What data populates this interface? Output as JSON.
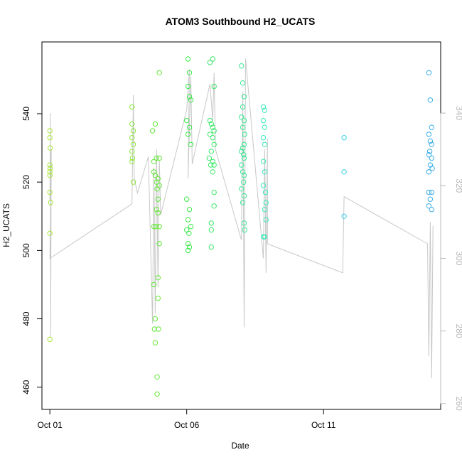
{
  "chart_data": {
    "type": "scatter",
    "title": "ATOM3 Southbound H2_UCATS",
    "xlabel": "Date",
    "ylabel": "H2_UCATS",
    "x_ticks": [
      {
        "label": "Oct 01",
        "day": 1
      },
      {
        "label": "Oct 06",
        "day": 6
      },
      {
        "label": "Oct 11",
        "day": 11
      }
    ],
    "xlim": [
      0.71,
      15.28
    ],
    "ylim": [
      453.5,
      561
    ],
    "y_ticks": [
      460,
      480,
      500,
      520,
      540
    ],
    "y2lim": [
      258.4,
      359.6
    ],
    "y2_ticks": [
      260,
      280,
      300,
      320,
      340
    ],
    "line_color": "#c8c8c8",
    "points": [
      {
        "day": 1.0,
        "y": 535,
        "color": "#a9e83a"
      },
      {
        "day": 1.0,
        "y": 533,
        "color": "#a9e83a"
      },
      {
        "day": 1.01,
        "y": 530,
        "color": "#a9e83a"
      },
      {
        "day": 1.0,
        "y": 525,
        "color": "#a9e83a"
      },
      {
        "day": 1.01,
        "y": 524,
        "color": "#a9e83a"
      },
      {
        "day": 1.0,
        "y": 523,
        "color": "#a9e83a"
      },
      {
        "day": 1.0,
        "y": 522,
        "color": "#a9e83a"
      },
      {
        "day": 1.0,
        "y": 517,
        "color": "#a9e83a"
      },
      {
        "day": 1.03,
        "y": 514,
        "color": "#a9e83a"
      },
      {
        "day": 1.0,
        "y": 505,
        "color": "#a9e83a"
      },
      {
        "day": 1.0,
        "y": 474,
        "color": "#a9e83a"
      },
      {
        "day": 4.0,
        "y": 542,
        "color": "#8ee83a"
      },
      {
        "day": 4.0,
        "y": 537,
        "color": "#8ee83a"
      },
      {
        "day": 4.05,
        "y": 535,
        "color": "#8ee83a"
      },
      {
        "day": 4.0,
        "y": 533,
        "color": "#8ee83a"
      },
      {
        "day": 4.05,
        "y": 531,
        "color": "#8ee83a"
      },
      {
        "day": 4.0,
        "y": 529,
        "color": "#8ee83a"
      },
      {
        "day": 4.02,
        "y": 527,
        "color": "#8ee83a"
      },
      {
        "day": 4.0,
        "y": 526,
        "color": "#8ee83a"
      },
      {
        "day": 4.05,
        "y": 520,
        "color": "#8ee83a"
      },
      {
        "day": 4.75,
        "y": 535,
        "color": "#66e83a"
      },
      {
        "day": 4.85,
        "y": 537,
        "color": "#66e83a"
      },
      {
        "day": 5.0,
        "y": 552,
        "color": "#66e83a"
      },
      {
        "day": 4.8,
        "y": 526,
        "color": "#66e83a"
      },
      {
        "day": 4.9,
        "y": 527,
        "color": "#66e83a"
      },
      {
        "day": 5.0,
        "y": 527,
        "color": "#66e83a"
      },
      {
        "day": 4.8,
        "y": 523,
        "color": "#66e83a"
      },
      {
        "day": 4.85,
        "y": 522,
        "color": "#66e83a"
      },
      {
        "day": 4.95,
        "y": 521,
        "color": "#66e83a"
      },
      {
        "day": 4.9,
        "y": 520,
        "color": "#66e83a"
      },
      {
        "day": 5.0,
        "y": 519,
        "color": "#66e83a"
      },
      {
        "day": 4.92,
        "y": 518,
        "color": "#66e83a"
      },
      {
        "day": 4.95,
        "y": 515,
        "color": "#66e83a"
      },
      {
        "day": 4.9,
        "y": 512,
        "color": "#66e83a"
      },
      {
        "day": 4.95,
        "y": 511,
        "color": "#66e83a"
      },
      {
        "day": 4.8,
        "y": 507,
        "color": "#66e83a"
      },
      {
        "day": 4.88,
        "y": 507,
        "color": "#66e83a"
      },
      {
        "day": 5.0,
        "y": 507,
        "color": "#66e83a"
      },
      {
        "day": 5.0,
        "y": 502,
        "color": "#66e83a"
      },
      {
        "day": 4.95,
        "y": 492,
        "color": "#66e83a"
      },
      {
        "day": 4.8,
        "y": 490,
        "color": "#66e83a"
      },
      {
        "day": 4.95,
        "y": 486,
        "color": "#66e83a"
      },
      {
        "day": 4.85,
        "y": 480,
        "color": "#66e83a"
      },
      {
        "day": 4.82,
        "y": 477,
        "color": "#66e83a"
      },
      {
        "day": 4.97,
        "y": 477,
        "color": "#66e83a"
      },
      {
        "day": 4.85,
        "y": 473,
        "color": "#66e83a"
      },
      {
        "day": 4.92,
        "y": 463,
        "color": "#66e83a"
      },
      {
        "day": 4.92,
        "y": 458,
        "color": "#66e83a"
      },
      {
        "day": 6.05,
        "y": 556,
        "color": "#3ae84a"
      },
      {
        "day": 6.1,
        "y": 552,
        "color": "#3ae84a"
      },
      {
        "day": 6.05,
        "y": 548,
        "color": "#3ae84a"
      },
      {
        "day": 6.1,
        "y": 545,
        "color": "#3ae84a"
      },
      {
        "day": 6.15,
        "y": 544,
        "color": "#3ae84a"
      },
      {
        "day": 6.0,
        "y": 538,
        "color": "#3ae84a"
      },
      {
        "day": 6.1,
        "y": 536,
        "color": "#3ae84a"
      },
      {
        "day": 6.05,
        "y": 534,
        "color": "#3ae84a"
      },
      {
        "day": 6.15,
        "y": 531,
        "color": "#3ae84a"
      },
      {
        "day": 6.0,
        "y": 515,
        "color": "#3ae84a"
      },
      {
        "day": 6.1,
        "y": 512,
        "color": "#3ae84a"
      },
      {
        "day": 6.05,
        "y": 509,
        "color": "#3ae84a"
      },
      {
        "day": 6.15,
        "y": 507,
        "color": "#3ae84a"
      },
      {
        "day": 6.0,
        "y": 506,
        "color": "#3ae84a"
      },
      {
        "day": 6.08,
        "y": 505,
        "color": "#3ae84a"
      },
      {
        "day": 6.05,
        "y": 502,
        "color": "#3ae84a"
      },
      {
        "day": 6.1,
        "y": 501,
        "color": "#3ae84a"
      },
      {
        "day": 6.05,
        "y": 500,
        "color": "#3ae84a"
      },
      {
        "day": 6.85,
        "y": 555,
        "color": "#3ae86a"
      },
      {
        "day": 6.95,
        "y": 556,
        "color": "#3ae86a"
      },
      {
        "day": 7.0,
        "y": 548,
        "color": "#3ae86a"
      },
      {
        "day": 6.85,
        "y": 538,
        "color": "#3ae86a"
      },
      {
        "day": 6.9,
        "y": 537,
        "color": "#3ae86a"
      },
      {
        "day": 6.95,
        "y": 536,
        "color": "#3ae86a"
      },
      {
        "day": 7.0,
        "y": 535,
        "color": "#3ae86a"
      },
      {
        "day": 6.85,
        "y": 534,
        "color": "#3ae86a"
      },
      {
        "day": 6.95,
        "y": 533,
        "color": "#3ae86a"
      },
      {
        "day": 7.0,
        "y": 531,
        "color": "#3ae86a"
      },
      {
        "day": 6.9,
        "y": 529,
        "color": "#3ae86a"
      },
      {
        "day": 6.82,
        "y": 527,
        "color": "#3ae86a"
      },
      {
        "day": 6.95,
        "y": 526,
        "color": "#3ae86a"
      },
      {
        "day": 6.88,
        "y": 525,
        "color": "#3ae86a"
      },
      {
        "day": 7.0,
        "y": 525,
        "color": "#3ae86a"
      },
      {
        "day": 6.95,
        "y": 523,
        "color": "#3ae86a"
      },
      {
        "day": 7.0,
        "y": 517,
        "color": "#3ae86a"
      },
      {
        "day": 7.0,
        "y": 513,
        "color": "#3ae86a"
      },
      {
        "day": 6.9,
        "y": 508,
        "color": "#3ae86a"
      },
      {
        "day": 6.9,
        "y": 506,
        "color": "#3ae86a"
      },
      {
        "day": 6.9,
        "y": 501,
        "color": "#3ae86a"
      },
      {
        "day": 8.0,
        "y": 554,
        "color": "#3ae894"
      },
      {
        "day": 8.05,
        "y": 549,
        "color": "#3ae894"
      },
      {
        "day": 8.1,
        "y": 545,
        "color": "#3ae894"
      },
      {
        "day": 8.05,
        "y": 542,
        "color": "#3ae894"
      },
      {
        "day": 8.0,
        "y": 539,
        "color": "#3ae894"
      },
      {
        "day": 8.1,
        "y": 538,
        "color": "#3ae894"
      },
      {
        "day": 8.05,
        "y": 536,
        "color": "#3ae894"
      },
      {
        "day": 8.12,
        "y": 534,
        "color": "#3ae894"
      },
      {
        "day": 8.1,
        "y": 531,
        "color": "#3ae894"
      },
      {
        "day": 8.05,
        "y": 530,
        "color": "#3ae894"
      },
      {
        "day": 8.0,
        "y": 529,
        "color": "#3ae894"
      },
      {
        "day": 8.08,
        "y": 528,
        "color": "#3ae894"
      },
      {
        "day": 8.1,
        "y": 527,
        "color": "#3ae894"
      },
      {
        "day": 8.0,
        "y": 525,
        "color": "#3ae894"
      },
      {
        "day": 8.05,
        "y": 523,
        "color": "#3ae894"
      },
      {
        "day": 8.1,
        "y": 522,
        "color": "#3ae894"
      },
      {
        "day": 8.08,
        "y": 520,
        "color": "#3ae894"
      },
      {
        "day": 8.0,
        "y": 518,
        "color": "#3ae894"
      },
      {
        "day": 8.1,
        "y": 516,
        "color": "#3ae894"
      },
      {
        "day": 8.05,
        "y": 514,
        "color": "#3ae894"
      },
      {
        "day": 8.1,
        "y": 508,
        "color": "#3ae894"
      },
      {
        "day": 8.12,
        "y": 506,
        "color": "#3ae894"
      },
      {
        "day": 8.8,
        "y": 542,
        "color": "#3ae8bc"
      },
      {
        "day": 8.85,
        "y": 541,
        "color": "#3ae8bc"
      },
      {
        "day": 8.8,
        "y": 538,
        "color": "#3ae8bc"
      },
      {
        "day": 8.85,
        "y": 536,
        "color": "#3ae8bc"
      },
      {
        "day": 8.8,
        "y": 533,
        "color": "#3ae8bc"
      },
      {
        "day": 8.85,
        "y": 531,
        "color": "#3ae8bc"
      },
      {
        "day": 8.8,
        "y": 526,
        "color": "#3ae8bc"
      },
      {
        "day": 8.85,
        "y": 523,
        "color": "#3ae8bc"
      },
      {
        "day": 8.8,
        "y": 519,
        "color": "#3ae8bc"
      },
      {
        "day": 8.88,
        "y": 517,
        "color": "#3ae8bc"
      },
      {
        "day": 8.9,
        "y": 514,
        "color": "#3ae8bc"
      },
      {
        "day": 8.85,
        "y": 512,
        "color": "#3ae8bc"
      },
      {
        "day": 8.9,
        "y": 509,
        "color": "#3ae8bc"
      },
      {
        "day": 8.8,
        "y": 504,
        "color": "#3ae8bc"
      },
      {
        "day": 8.85,
        "y": 504,
        "color": "#3ae8bc"
      },
      {
        "day": 11.75,
        "y": 533,
        "color": "#3ad2e8"
      },
      {
        "day": 11.75,
        "y": 523,
        "color": "#3ad2e8"
      },
      {
        "day": 11.75,
        "y": 510,
        "color": "#3ad2e8"
      },
      {
        "day": 14.85,
        "y": 552,
        "color": "#3aaee8"
      },
      {
        "day": 14.9,
        "y": 544,
        "color": "#3aaee8"
      },
      {
        "day": 14.95,
        "y": 536,
        "color": "#3aaee8"
      },
      {
        "day": 14.85,
        "y": 534,
        "color": "#3aaee8"
      },
      {
        "day": 14.9,
        "y": 532,
        "color": "#3aaee8"
      },
      {
        "day": 14.95,
        "y": 531,
        "color": "#3aaee8"
      },
      {
        "day": 14.88,
        "y": 529,
        "color": "#3aaee8"
      },
      {
        "day": 14.95,
        "y": 527,
        "color": "#3aaee8"
      },
      {
        "day": 14.85,
        "y": 528,
        "color": "#3aaee8"
      },
      {
        "day": 14.9,
        "y": 525,
        "color": "#3aaee8"
      },
      {
        "day": 14.97,
        "y": 524,
        "color": "#3aaee8"
      },
      {
        "day": 14.85,
        "y": 523,
        "color": "#3aaee8"
      },
      {
        "day": 14.95,
        "y": 517,
        "color": "#3aaee8"
      },
      {
        "day": 14.85,
        "y": 517,
        "color": "#3aaee8"
      },
      {
        "day": 14.9,
        "y": 515,
        "color": "#3aaee8"
      },
      {
        "day": 14.85,
        "y": 513,
        "color": "#3aaee8"
      },
      {
        "day": 14.95,
        "y": 512,
        "color": "#3aaee8"
      }
    ],
    "line_y2": [
      [
        1.0,
        316
      ],
      [
        1.02,
        340
      ],
      [
        1.03,
        278
      ],
      [
        1.05,
        330
      ],
      [
        1.0,
        300
      ],
      [
        4.0,
        315
      ],
      [
        4.05,
        345
      ],
      [
        4.08,
        322
      ],
      [
        4.2,
        318
      ],
      [
        4.6,
        328
      ],
      [
        4.75,
        282
      ],
      [
        4.8,
        325
      ],
      [
        4.85,
        285
      ],
      [
        4.9,
        330
      ],
      [
        4.95,
        292
      ],
      [
        5.0,
        327
      ],
      [
        5.05,
        312
      ],
      [
        6.0,
        341
      ],
      [
        6.1,
        352
      ],
      [
        6.05,
        322
      ],
      [
        6.15,
        350
      ],
      [
        6.2,
        326
      ],
      [
        6.85,
        348
      ],
      [
        6.95,
        338
      ],
      [
        7.0,
        351
      ],
      [
        7.05,
        330
      ],
      [
        8.0,
        305
      ],
      [
        8.05,
        346
      ],
      [
        8.1,
        281
      ],
      [
        8.15,
        355
      ],
      [
        8.8,
        300
      ],
      [
        8.85,
        330
      ],
      [
        8.9,
        296
      ],
      [
        8.95,
        333
      ],
      [
        8.95,
        304
      ],
      [
        11.7,
        296
      ],
      [
        11.75,
        317
      ],
      [
        14.8,
        304
      ],
      [
        14.85,
        273
      ],
      [
        14.9,
        310
      ],
      [
        14.95,
        267
      ],
      [
        15.0,
        309
      ]
    ]
  }
}
